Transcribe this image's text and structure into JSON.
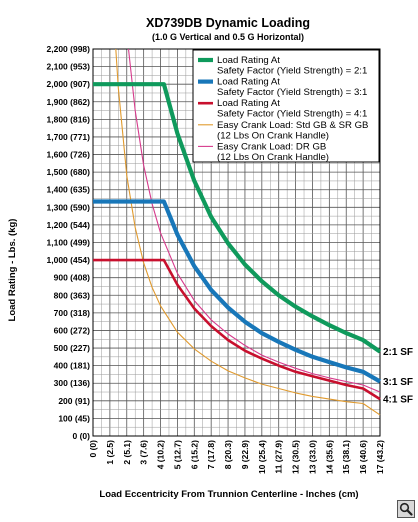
{
  "chart_data": {
    "type": "line",
    "title": "XD739DB Dynamic Loading",
    "subtitle": "(1.0 G Vertical and 0.5 G Horizontal)",
    "xlabel": "Load Eccentricity From Trunnion Centerline - Inches (cm)",
    "ylabel": "Load Rating - Lbs. (kg)",
    "xlim": [
      0,
      17
    ],
    "ylim": [
      0,
      2200
    ],
    "x_ticks": [
      {
        "value": 0,
        "label": "0",
        "cm": "(0)"
      },
      {
        "value": 1,
        "label": "1",
        "cm": "(2.5)"
      },
      {
        "value": 2,
        "label": "2",
        "cm": "(5.1)"
      },
      {
        "value": 3,
        "label": "3",
        "cm": "(7.6)"
      },
      {
        "value": 4,
        "label": "4",
        "cm": "(10.2)"
      },
      {
        "value": 5,
        "label": "5",
        "cm": "(12.7)"
      },
      {
        "value": 6,
        "label": "6",
        "cm": "(15.2)"
      },
      {
        "value": 7,
        "label": "7",
        "cm": "(17.8)"
      },
      {
        "value": 8,
        "label": "8",
        "cm": "(20.3)"
      },
      {
        "value": 9,
        "label": "9",
        "cm": "(22.9)"
      },
      {
        "value": 10,
        "label": "10",
        "cm": "(25.4)"
      },
      {
        "value": 11,
        "label": "11",
        "cm": "(27.9)"
      },
      {
        "value": 12,
        "label": "12",
        "cm": "(30.5)"
      },
      {
        "value": 13,
        "label": "13",
        "cm": "(33.0)"
      },
      {
        "value": 14,
        "label": "14",
        "cm": "(35.6)"
      },
      {
        "value": 15,
        "label": "15",
        "cm": "(38.1)"
      },
      {
        "value": 16,
        "label": "16",
        "cm": "(40.6)"
      },
      {
        "value": 17,
        "label": "17",
        "cm": "(43.2)"
      }
    ],
    "y_ticks": [
      {
        "value": 0,
        "label": "0",
        "kg": "(0)"
      },
      {
        "value": 100,
        "label": "100",
        "kg": "(45)"
      },
      {
        "value": 200,
        "label": "200",
        "kg": "(91)"
      },
      {
        "value": 300,
        "label": "300",
        "kg": "(136)"
      },
      {
        "value": 400,
        "label": "400",
        "kg": "(181)"
      },
      {
        "value": 500,
        "label": "500",
        "kg": "(227)"
      },
      {
        "value": 600,
        "label": "600",
        "kg": "(272)"
      },
      {
        "value": 700,
        "label": "700",
        "kg": "(318)"
      },
      {
        "value": 800,
        "label": "800",
        "kg": "(363)"
      },
      {
        "value": 900,
        "label": "900",
        "kg": "(408)"
      },
      {
        "value": 1000,
        "label": "1,000",
        "kg": "(454)"
      },
      {
        "value": 1100,
        "label": "1,100",
        "kg": "(499)"
      },
      {
        "value": 1200,
        "label": "1,200",
        "kg": "(544)"
      },
      {
        "value": 1300,
        "label": "1,300",
        "kg": "(590)"
      },
      {
        "value": 1400,
        "label": "1,400",
        "kg": "(635)"
      },
      {
        "value": 1500,
        "label": "1,500",
        "kg": "(680)"
      },
      {
        "value": 1600,
        "label": "1,600",
        "kg": "(726)"
      },
      {
        "value": 1700,
        "label": "1,700",
        "kg": "(771)"
      },
      {
        "value": 1800,
        "label": "1,800",
        "kg": "(816)"
      },
      {
        "value": 1900,
        "label": "1,900",
        "kg": "(862)"
      },
      {
        "value": 2000,
        "label": "2,000",
        "kg": "(907)"
      },
      {
        "value": 2100,
        "label": "2,100",
        "kg": "(953)"
      },
      {
        "value": 2200,
        "label": "2,200",
        "kg": "(998)"
      }
    ],
    "grid": true,
    "legend_position": "top-right",
    "series": [
      {
        "name": "Load Rating At Safety Factor (Yield Strength) = 2:1",
        "legend_lines": [
          "Load Rating At",
          "Safety Factor (Yield Strength) = 2:1"
        ],
        "color": "#0f9a5c",
        "line_weight": "heavy",
        "end_label": "2:1 SF",
        "points": [
          [
            0,
            2000
          ],
          [
            4.2,
            2000
          ],
          [
            5,
            1720
          ],
          [
            6,
            1450
          ],
          [
            7,
            1245
          ],
          [
            8,
            1095
          ],
          [
            9,
            975
          ],
          [
            10,
            880
          ],
          [
            11,
            800
          ],
          [
            12,
            735
          ],
          [
            13,
            680
          ],
          [
            14,
            630
          ],
          [
            15,
            585
          ],
          [
            16,
            545
          ],
          [
            17,
            480
          ]
        ]
      },
      {
        "name": "Load Rating At Safety Factor (Yield Strength) = 3:1",
        "legend_lines": [
          "Load Rating At",
          "Safety Factor (Yield Strength) = 3:1"
        ],
        "color": "#1877b9",
        "line_weight": "heavy",
        "end_label": "3:1 SF",
        "points": [
          [
            0,
            1333
          ],
          [
            4.2,
            1333
          ],
          [
            5,
            1145
          ],
          [
            6,
            965
          ],
          [
            7,
            830
          ],
          [
            8,
            730
          ],
          [
            9,
            650
          ],
          [
            10,
            585
          ],
          [
            11,
            535
          ],
          [
            12,
            490
          ],
          [
            13,
            450
          ],
          [
            14,
            420
          ],
          [
            15,
            390
          ],
          [
            16,
            365
          ],
          [
            17,
            310
          ]
        ]
      },
      {
        "name": "Load Rating At Safety Factor (Yield Strength) = 4:1",
        "legend_lines": [
          "Load Rating At",
          "Safety Factor (Yield Strength) = 4:1"
        ],
        "color": "#c8102e",
        "line_weight": "medium",
        "end_label": "4:1 SF",
        "points": [
          [
            0,
            1000
          ],
          [
            4.2,
            1000
          ],
          [
            5,
            860
          ],
          [
            6,
            725
          ],
          [
            7,
            625
          ],
          [
            8,
            545
          ],
          [
            9,
            485
          ],
          [
            10,
            440
          ],
          [
            11,
            400
          ],
          [
            12,
            365
          ],
          [
            13,
            340
          ],
          [
            14,
            315
          ],
          [
            15,
            290
          ],
          [
            16,
            270
          ],
          [
            17,
            210
          ]
        ]
      },
      {
        "name": "Easy Crank Load: Std GB & SR GB (12 Lbs On Crank Handle)",
        "legend_lines": [
          "Easy Crank Load: Std GB & SR GB",
          "(12 Lbs On Crank Handle)"
        ],
        "color": "#e09a2e",
        "line_weight": "thin",
        "points": [
          [
            1.35,
            2200
          ],
          [
            1.5,
            1980
          ],
          [
            2,
            1480
          ],
          [
            2.5,
            1185
          ],
          [
            3,
            985
          ],
          [
            3.5,
            845
          ],
          [
            4,
            740
          ],
          [
            5,
            590
          ],
          [
            6,
            495
          ],
          [
            7,
            425
          ],
          [
            8,
            370
          ],
          [
            9,
            330
          ],
          [
            10,
            295
          ],
          [
            11,
            270
          ],
          [
            12,
            245
          ],
          [
            13,
            225
          ],
          [
            14,
            210
          ],
          [
            15,
            195
          ],
          [
            16,
            185
          ],
          [
            17,
            120
          ]
        ]
      },
      {
        "name": "Easy Crank Load: DR GB (12 Lbs On Crank Handle)",
        "legend_lines": [
          "Easy Crank Load: DR GB",
          "(12 Lbs On Crank Handle)"
        ],
        "color": "#d63a8c",
        "line_weight": "thin",
        "points": [
          [
            2.1,
            2200
          ],
          [
            2.5,
            1850
          ],
          [
            3,
            1540
          ],
          [
            3.5,
            1320
          ],
          [
            4,
            1155
          ],
          [
            5,
            925
          ],
          [
            6,
            770
          ],
          [
            7,
            660
          ],
          [
            8,
            580
          ],
          [
            9,
            515
          ],
          [
            10,
            460
          ],
          [
            11,
            420
          ],
          [
            12,
            385
          ],
          [
            13,
            355
          ],
          [
            14,
            330
          ],
          [
            15,
            310
          ],
          [
            16,
            290
          ],
          [
            17,
            250
          ]
        ]
      }
    ]
  }
}
